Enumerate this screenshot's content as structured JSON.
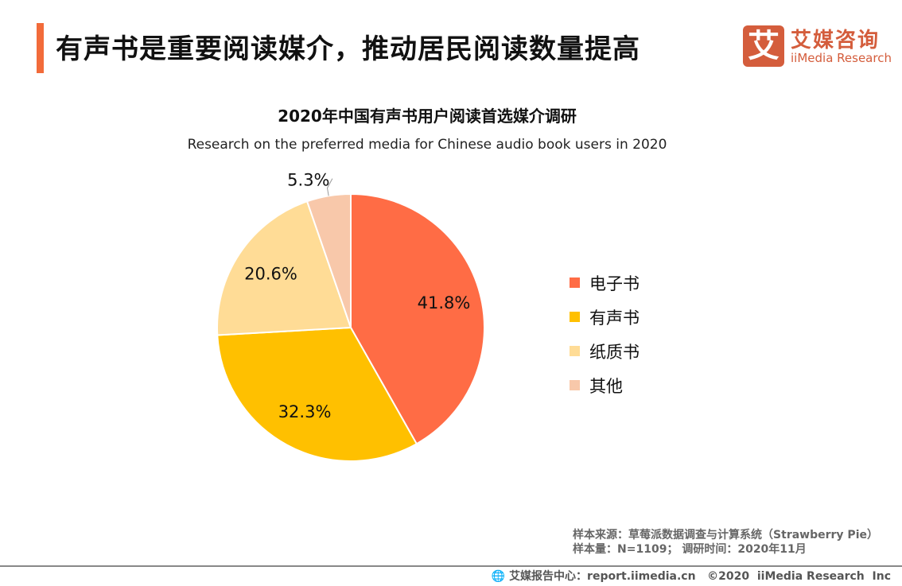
{
  "header": {
    "title": "有声书是重要阅读媒介，推动居民阅读数量提高"
  },
  "logo": {
    "mark": "艾",
    "cn": "艾媒咨询",
    "en": "iiMedia Research"
  },
  "chart_data": {
    "type": "pie",
    "title": "2020年中国有声书用户阅读首选媒介调研",
    "subtitle": "Research on the preferred media for Chinese audio book users in 2020",
    "categories": [
      "电子书",
      "有声书",
      "纸质书",
      "其他"
    ],
    "values": [
      41.8,
      32.3,
      20.6,
      5.3
    ],
    "labels": [
      "41.8%",
      "32.3%",
      "20.6%",
      "5.3%"
    ],
    "colors": [
      "#FF6C45",
      "#FFC000",
      "#FFDC96",
      "#F8C8AA"
    ],
    "legend_position": "right"
  },
  "notes": {
    "source": "样本来源：草莓派数据调查与计算系统（Strawberry Pie）",
    "sample": "样本量：N=1109； 调研时间：2020年11月"
  },
  "footer": {
    "text": "艾媒报告中心：report.iimedia.cn   ©2020  iiMedia Research  Inc",
    "icon": "globe-icon"
  }
}
